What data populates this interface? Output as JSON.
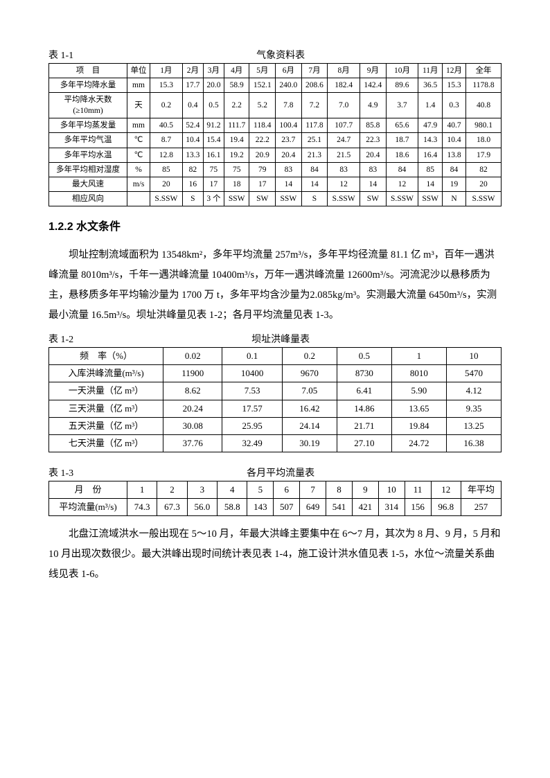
{
  "table1": {
    "label": "表 1-1",
    "title": "气象资料表",
    "columns": [
      "项　目",
      "单位",
      "1月",
      "2月",
      "3月",
      "4月",
      "5月",
      "6月",
      "7月",
      "8月",
      "9月",
      "10月",
      "11月",
      "12月",
      "全年"
    ],
    "rows": [
      [
        "多年平均降水量",
        "mm",
        "15.3",
        "17.7",
        "20.0",
        "58.9",
        "152.1",
        "240.0",
        "208.6",
        "182.4",
        "142.4",
        "89.6",
        "36.5",
        "15.3",
        "1178.8"
      ],
      [
        "平均降水天数(≥10mm)",
        "天",
        "0.2",
        "0.4",
        "0.5",
        "2.2",
        "5.2",
        "7.8",
        "7.2",
        "7.0",
        "4.9",
        "3.7",
        "1.4",
        "0.3",
        "40.8"
      ],
      [
        "多年平均蒸发量",
        "mm",
        "40.5",
        "52.4",
        "91.2",
        "111.7",
        "118.4",
        "100.4",
        "117.8",
        "107.7",
        "85.8",
        "65.6",
        "47.9",
        "40.7",
        "980.1"
      ],
      [
        "多年平均气温",
        "℃",
        "8.7",
        "10.4",
        "15.4",
        "19.4",
        "22.2",
        "23.7",
        "25.1",
        "24.7",
        "22.3",
        "18.7",
        "14.3",
        "10.4",
        "18.0"
      ],
      [
        "多年平均水温",
        "℃",
        "12.8",
        "13.3",
        "16.1",
        "19.2",
        "20.9",
        "20.4",
        "21.3",
        "21.5",
        "20.4",
        "18.6",
        "16.4",
        "13.8",
        "17.9"
      ],
      [
        "多年平均相对湿度",
        "%",
        "85",
        "82",
        "75",
        "75",
        "79",
        "83",
        "84",
        "83",
        "83",
        "84",
        "85",
        "84",
        "82"
      ],
      [
        "最大风速",
        "m/s",
        "20",
        "16",
        "17",
        "18",
        "17",
        "14",
        "14",
        "12",
        "14",
        "12",
        "14",
        "19",
        "20"
      ],
      [
        "相应风向",
        "",
        "S.SSW",
        "S",
        "3 个",
        "SSW",
        "SW",
        "SSW",
        "S",
        "S.SSW",
        "SW",
        "S.SSW",
        "SSW",
        "N",
        "S.SSW"
      ]
    ]
  },
  "section122": {
    "heading": "1.2.2 水文条件",
    "para1": "坝址控制流域面积为 13548km²，多年平均流量 257m³/s，多年平均径流量 81.1 亿 m³，百年一遇洪峰流量 8010m³/s，千年一遇洪峰流量 10400m³/s，万年一遇洪峰流量 12600m³/s。河流泥沙以悬移质为主，悬移质多年平均输沙量为 1700 万 t，多年平均含沙量为2.085kg/m³。实测最大流量 6450m³/s，实测最小流量 16.5m³/s。坝址洪峰量见表 1-2；各月平均流量见表 1-3。"
  },
  "table2": {
    "label": "表 1-2",
    "title": "坝址洪峰量表",
    "columns": [
      "频　率（%）",
      "0.02",
      "0.1",
      "0.2",
      "0.5",
      "1",
      "10"
    ],
    "rows": [
      [
        "入库洪峰流量(m³/s)",
        "11900",
        "10400",
        "9670",
        "8730",
        "8010",
        "5470"
      ],
      [
        "一天洪量（亿 m³）",
        "8.62",
        "7.53",
        "7.05",
        "6.41",
        "5.90",
        "4.12"
      ],
      [
        "三天洪量（亿 m³）",
        "20.24",
        "17.57",
        "16.42",
        "14.86",
        "13.65",
        "9.35"
      ],
      [
        "五天洪量（亿 m³）",
        "30.08",
        "25.95",
        "24.14",
        "21.71",
        "19.84",
        "13.25"
      ],
      [
        "七天洪量（亿 m³）",
        "37.76",
        "32.49",
        "30.19",
        "27.10",
        "24.72",
        "16.38"
      ]
    ]
  },
  "table3": {
    "label": "表 1-3",
    "title": "各月平均流量表",
    "columns": [
      "月　份",
      "1",
      "2",
      "3",
      "4",
      "5",
      "6",
      "7",
      "8",
      "9",
      "10",
      "11",
      "12",
      "年平均"
    ],
    "rows": [
      [
        "平均流量(m³/s)",
        "74.3",
        "67.3",
        "56.0",
        "58.8",
        "143",
        "507",
        "649",
        "541",
        "421",
        "314",
        "156",
        "96.8",
        "257"
      ]
    ]
  },
  "para2": "北盘江流域洪水一般出现在 5～10 月，年最大洪峰主要集中在 6～7 月，其次为 8 月、9 月，5 月和 10 月出现次数很少。最大洪峰出现时间统计表见表 1-4，施工设计洪水值见表 1-5，水位～流量关系曲线见表 1-6。"
}
